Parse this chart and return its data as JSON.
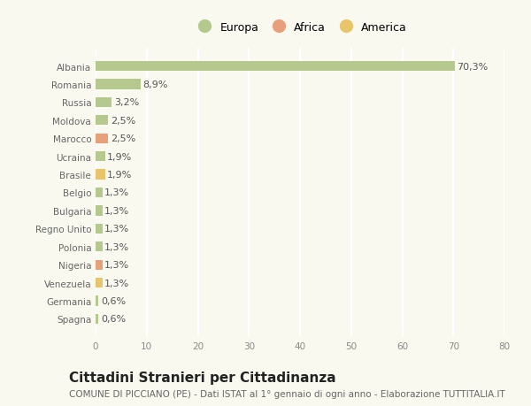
{
  "countries": [
    "Spagna",
    "Germania",
    "Venezuela",
    "Nigeria",
    "Polonia",
    "Regno Unito",
    "Bulgaria",
    "Belgio",
    "Brasile",
    "Ucraina",
    "Marocco",
    "Moldova",
    "Russia",
    "Romania",
    "Albania"
  ],
  "values": [
    0.6,
    0.6,
    1.3,
    1.3,
    1.3,
    1.3,
    1.3,
    1.3,
    1.9,
    1.9,
    2.5,
    2.5,
    3.2,
    8.9,
    70.3
  ],
  "labels": [
    "0,6%",
    "0,6%",
    "1,3%",
    "1,3%",
    "1,3%",
    "1,3%",
    "1,3%",
    "1,3%",
    "1,9%",
    "1,9%",
    "2,5%",
    "2,5%",
    "3,2%",
    "8,9%",
    "70,3%"
  ],
  "colors": [
    "#b5c98e",
    "#b5c98e",
    "#e8c46a",
    "#e8a07a",
    "#b5c98e",
    "#b5c98e",
    "#b5c98e",
    "#b5c98e",
    "#e8c46a",
    "#b5c98e",
    "#e8a07a",
    "#b5c98e",
    "#b5c98e",
    "#b5c98e",
    "#b5c98e"
  ],
  "legend_labels": [
    "Europa",
    "Africa",
    "America"
  ],
  "legend_colors": [
    "#b5c98e",
    "#e8a07a",
    "#e8c46a"
  ],
  "title": "Cittadini Stranieri per Cittadinanza",
  "subtitle": "COMUNE DI PICCIANO (PE) - Dati ISTAT al 1° gennaio di ogni anno - Elaborazione TUTTITALIA.IT",
  "xlim": [
    0,
    80
  ],
  "xticks": [
    0,
    10,
    20,
    30,
    40,
    50,
    60,
    70,
    80
  ],
  "background_color": "#f9f9f0",
  "bar_height": 0.55,
  "grid_color": "#ffffff",
  "title_fontsize": 11,
  "subtitle_fontsize": 7.5,
  "label_fontsize": 8,
  "tick_fontsize": 7.5,
  "legend_fontsize": 9
}
